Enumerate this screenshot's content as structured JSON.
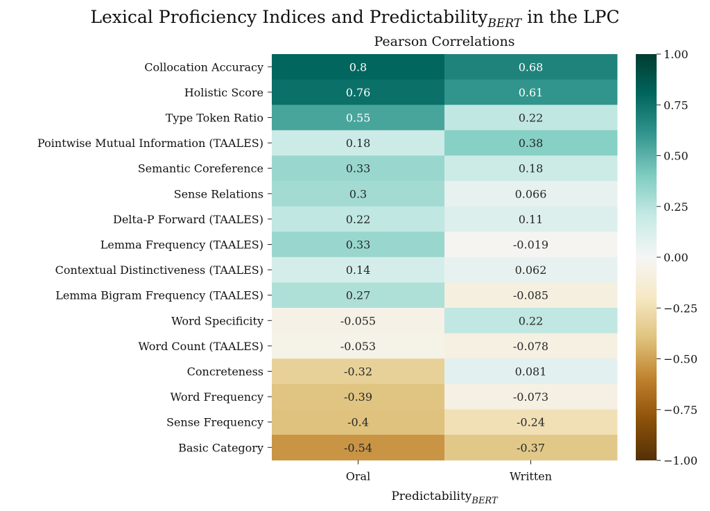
{
  "chart_data": {
    "type": "heatmap",
    "title": "Lexical Proficiency Indices and Predictability",
    "title_subscript": "BERT",
    "title_suffix": " in the LPC",
    "subtitle": "Pearson Correlations",
    "xlabel": "Predictability",
    "xlabel_subscript": "BERT",
    "ylabel": "",
    "columns": [
      "Oral",
      "Written"
    ],
    "rows": [
      "Collocation Accuracy",
      "Holistic Score",
      "Type Token Ratio",
      "Pointwise Mutual Information (TAALES)",
      "Semantic Coreference",
      "Sense Relations",
      "Delta-P Forward (TAALES)",
      "Lemma Frequency (TAALES)",
      "Contextual Distinctiveness (TAALES)",
      "Lemma Bigram Frequency (TAALES)",
      "Word Specificity",
      "Word Count (TAALES)",
      "Concreteness",
      "Word Frequency",
      "Sense Frequency",
      "Basic Category"
    ],
    "values": [
      [
        0.8,
        0.68
      ],
      [
        0.76,
        0.61
      ],
      [
        0.55,
        0.22
      ],
      [
        0.18,
        0.38
      ],
      [
        0.33,
        0.18
      ],
      [
        0.3,
        0.066
      ],
      [
        0.22,
        0.11
      ],
      [
        0.33,
        -0.019
      ],
      [
        0.14,
        0.062
      ],
      [
        0.27,
        -0.085
      ],
      [
        -0.055,
        0.22
      ],
      [
        -0.053,
        -0.078
      ],
      [
        -0.32,
        0.081
      ],
      [
        -0.39,
        -0.073
      ],
      [
        -0.4,
        -0.24
      ],
      [
        -0.54,
        -0.37
      ]
    ],
    "labels": [
      [
        "0.8",
        "0.68"
      ],
      [
        "0.76",
        "0.61"
      ],
      [
        "0.55",
        "0.22"
      ],
      [
        "0.18",
        "0.38"
      ],
      [
        "0.33",
        "0.18"
      ],
      [
        "0.3",
        "0.066"
      ],
      [
        "0.22",
        "0.11"
      ],
      [
        "0.33",
        "-0.019"
      ],
      [
        "0.14",
        "0.062"
      ],
      [
        "0.27",
        "-0.085"
      ],
      [
        "-0.055",
        "0.22"
      ],
      [
        "-0.053",
        "-0.078"
      ],
      [
        "-0.32",
        "0.081"
      ],
      [
        "-0.39",
        "-0.073"
      ],
      [
        "-0.4",
        "-0.24"
      ],
      [
        "-0.54",
        "-0.37"
      ]
    ],
    "colormap": "BrBG",
    "vmin": -1.0,
    "vmax": 1.0,
    "colorbar_ticks": [
      1.0,
      0.75,
      0.5,
      0.25,
      0.0,
      -0.25,
      -0.5,
      -0.75,
      -1.0
    ],
    "colorbar_tick_labels": [
      "1.00",
      "0.75",
      "0.50",
      "0.25",
      "0.00",
      "−0.25",
      "−0.50",
      "−0.75",
      "−1.00"
    ],
    "colors": {
      "low": "#543005",
      "mid": "#f5f5f5",
      "high": "#003c30"
    }
  }
}
